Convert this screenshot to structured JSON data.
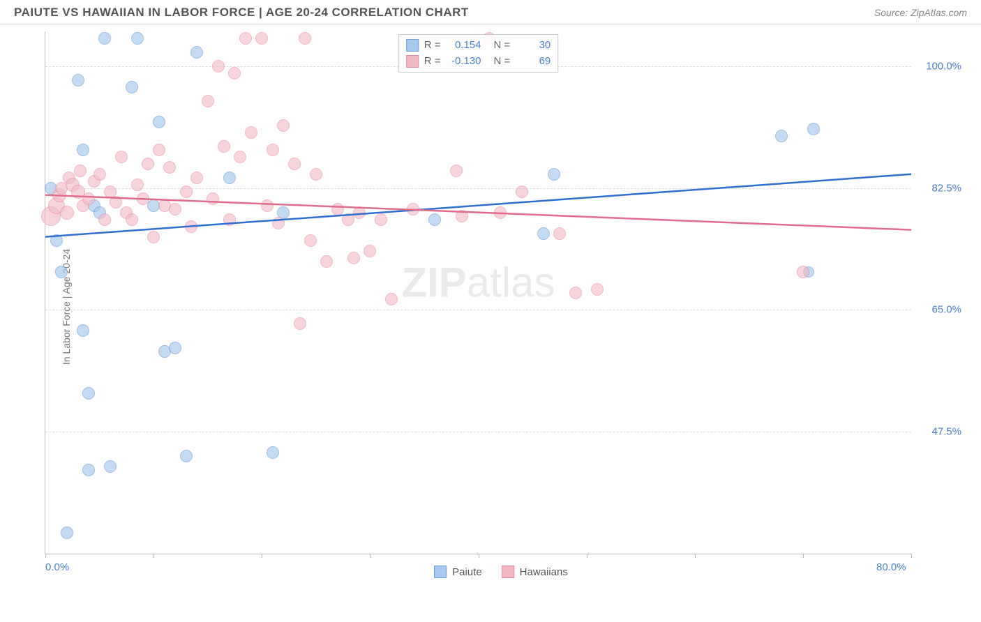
{
  "header": {
    "title": "PAIUTE VS HAWAIIAN IN LABOR FORCE | AGE 20-24 CORRELATION CHART",
    "source": "Source: ZipAtlas.com"
  },
  "chart": {
    "type": "scatter",
    "ylabel": "In Labor Force | Age 20-24",
    "watermark_bold": "ZIP",
    "watermark_rest": "atlas",
    "background_color": "#ffffff",
    "grid_color": "#dcdcdc",
    "axis_color": "#bbbbbb",
    "tick_label_color": "#4a7fd4",
    "xlim": [
      0,
      80
    ],
    "ylim": [
      30,
      105
    ],
    "xticks": [
      0,
      10,
      20,
      30,
      40,
      50,
      60,
      70,
      80
    ],
    "x_labels_shown": [
      {
        "v": 0,
        "t": "0.0%"
      },
      {
        "v": 80,
        "t": "80.0%"
      }
    ],
    "yticks": [
      {
        "v": 100.0,
        "t": "100.0%"
      },
      {
        "v": 82.5,
        "t": "82.5%"
      },
      {
        "v": 65.0,
        "t": "65.0%"
      },
      {
        "v": 47.5,
        "t": "47.5%"
      }
    ],
    "series": [
      {
        "name": "Paiute",
        "marker_color": "#a7c9ee",
        "marker_border": "#6b9ed6",
        "marker_opacity": 0.65,
        "marker_radius": 9,
        "line_color": "#2f6fd0",
        "line_width": 2.5,
        "R": "0.154",
        "N": "30",
        "trend": {
          "x1": 0,
          "y1": 75.5,
          "x2": 80,
          "y2": 84.5
        },
        "points": [
          {
            "x": 0.5,
            "y": 82.5,
            "r": 9
          },
          {
            "x": 1.0,
            "y": 75.0,
            "r": 9
          },
          {
            "x": 1.5,
            "y": 70.5,
            "r": 9
          },
          {
            "x": 2.0,
            "y": 33.0,
            "r": 9
          },
          {
            "x": 3.0,
            "y": 98.0,
            "r": 9
          },
          {
            "x": 3.5,
            "y": 62.0,
            "r": 9
          },
          {
            "x": 3.5,
            "y": 88.0,
            "r": 9
          },
          {
            "x": 4.0,
            "y": 42.0,
            "r": 9
          },
          {
            "x": 4.0,
            "y": 53.0,
            "r": 9
          },
          {
            "x": 4.5,
            "y": 80.0,
            "r": 9
          },
          {
            "x": 5.0,
            "y": 79.0,
            "r": 9
          },
          {
            "x": 5.5,
            "y": 104.0,
            "r": 9
          },
          {
            "x": 6.0,
            "y": 42.5,
            "r": 9
          },
          {
            "x": 8.0,
            "y": 97.0,
            "r": 9
          },
          {
            "x": 8.5,
            "y": 104.0,
            "r": 9
          },
          {
            "x": 10.0,
            "y": 80.0,
            "r": 9
          },
          {
            "x": 10.5,
            "y": 92.0,
            "r": 9
          },
          {
            "x": 11.0,
            "y": 59.0,
            "r": 9
          },
          {
            "x": 12.0,
            "y": 59.5,
            "r": 9
          },
          {
            "x": 13.0,
            "y": 44.0,
            "r": 9
          },
          {
            "x": 14.0,
            "y": 102.0,
            "r": 9
          },
          {
            "x": 17.0,
            "y": 84.0,
            "r": 9
          },
          {
            "x": 21.0,
            "y": 44.5,
            "r": 9
          },
          {
            "x": 22.0,
            "y": 79.0,
            "r": 9
          },
          {
            "x": 36.0,
            "y": 78.0,
            "r": 9
          },
          {
            "x": 46.0,
            "y": 76.0,
            "r": 9
          },
          {
            "x": 47.0,
            "y": 84.5,
            "r": 9
          },
          {
            "x": 68.0,
            "y": 90.0,
            "r": 9
          },
          {
            "x": 70.5,
            "y": 70.5,
            "r": 8
          },
          {
            "x": 71.0,
            "y": 91.0,
            "r": 9
          }
        ]
      },
      {
        "name": "Hawaiians",
        "marker_color": "#f2b9c5",
        "marker_border": "#e48aa0",
        "marker_opacity": 0.6,
        "marker_radius": 9,
        "line_color": "#e16b8c",
        "line_width": 2.5,
        "R": "-0.130",
        "N": "69",
        "trend": {
          "x1": 0,
          "y1": 81.5,
          "x2": 80,
          "y2": 76.5
        },
        "points": [
          {
            "x": 0.5,
            "y": 78.5,
            "r": 14
          },
          {
            "x": 1.0,
            "y": 80.0,
            "r": 12
          },
          {
            "x": 1.3,
            "y": 81.5,
            "r": 10
          },
          {
            "x": 1.5,
            "y": 82.5,
            "r": 9
          },
          {
            "x": 2.0,
            "y": 79.0,
            "r": 10
          },
          {
            "x": 2.2,
            "y": 84.0,
            "r": 9
          },
          {
            "x": 2.5,
            "y": 83.0,
            "r": 10
          },
          {
            "x": 3.0,
            "y": 82.0,
            "r": 10
          },
          {
            "x": 3.2,
            "y": 85.0,
            "r": 9
          },
          {
            "x": 3.5,
            "y": 80.0,
            "r": 9
          },
          {
            "x": 4.0,
            "y": 81.0,
            "r": 9
          },
          {
            "x": 4.5,
            "y": 83.5,
            "r": 9
          },
          {
            "x": 5.0,
            "y": 84.5,
            "r": 9
          },
          {
            "x": 5.5,
            "y": 78.0,
            "r": 9
          },
          {
            "x": 6.0,
            "y": 82.0,
            "r": 9
          },
          {
            "x": 6.5,
            "y": 80.5,
            "r": 9
          },
          {
            "x": 7.0,
            "y": 87.0,
            "r": 9
          },
          {
            "x": 7.5,
            "y": 79.0,
            "r": 9
          },
          {
            "x": 8.0,
            "y": 78.0,
            "r": 9
          },
          {
            "x": 8.5,
            "y": 83.0,
            "r": 9
          },
          {
            "x": 9.0,
            "y": 81.0,
            "r": 9
          },
          {
            "x": 9.5,
            "y": 86.0,
            "r": 9
          },
          {
            "x": 10.0,
            "y": 75.5,
            "r": 9
          },
          {
            "x": 10.5,
            "y": 88.0,
            "r": 9
          },
          {
            "x": 11.0,
            "y": 80.0,
            "r": 9
          },
          {
            "x": 11.5,
            "y": 85.5,
            "r": 9
          },
          {
            "x": 12.0,
            "y": 79.5,
            "r": 9
          },
          {
            "x": 13.0,
            "y": 82.0,
            "r": 9
          },
          {
            "x": 13.5,
            "y": 77.0,
            "r": 9
          },
          {
            "x": 14.0,
            "y": 84.0,
            "r": 9
          },
          {
            "x": 15.0,
            "y": 95.0,
            "r": 9
          },
          {
            "x": 15.5,
            "y": 81.0,
            "r": 9
          },
          {
            "x": 16.0,
            "y": 100.0,
            "r": 9
          },
          {
            "x": 16.5,
            "y": 88.5,
            "r": 9
          },
          {
            "x": 17.0,
            "y": 78.0,
            "r": 9
          },
          {
            "x": 17.5,
            "y": 99.0,
            "r": 9
          },
          {
            "x": 18.0,
            "y": 87.0,
            "r": 9
          },
          {
            "x": 18.5,
            "y": 104.0,
            "r": 9
          },
          {
            "x": 19.0,
            "y": 90.5,
            "r": 9
          },
          {
            "x": 20.0,
            "y": 104.0,
            "r": 9
          },
          {
            "x": 20.5,
            "y": 80.0,
            "r": 9
          },
          {
            "x": 21.0,
            "y": 88.0,
            "r": 9
          },
          {
            "x": 21.5,
            "y": 77.5,
            "r": 9
          },
          {
            "x": 22.0,
            "y": 91.5,
            "r": 9
          },
          {
            "x": 23.0,
            "y": 86.0,
            "r": 9
          },
          {
            "x": 23.5,
            "y": 63.0,
            "r": 9
          },
          {
            "x": 24.0,
            "y": 104.0,
            "r": 9
          },
          {
            "x": 24.5,
            "y": 75.0,
            "r": 9
          },
          {
            "x": 25.0,
            "y": 84.5,
            "r": 9
          },
          {
            "x": 26.0,
            "y": 72.0,
            "r": 9
          },
          {
            "x": 27.0,
            "y": 79.5,
            "r": 9
          },
          {
            "x": 28.0,
            "y": 78.0,
            "r": 9
          },
          {
            "x": 28.5,
            "y": 72.5,
            "r": 9
          },
          {
            "x": 29.0,
            "y": 79.0,
            "r": 9
          },
          {
            "x": 30.0,
            "y": 73.5,
            "r": 9
          },
          {
            "x": 31.0,
            "y": 78.0,
            "r": 9
          },
          {
            "x": 32.0,
            "y": 66.5,
            "r": 9
          },
          {
            "x": 34.0,
            "y": 79.5,
            "r": 9
          },
          {
            "x": 38.0,
            "y": 85.0,
            "r": 9
          },
          {
            "x": 38.5,
            "y": 78.5,
            "r": 9
          },
          {
            "x": 41.0,
            "y": 104.0,
            "r": 9
          },
          {
            "x": 42.0,
            "y": 79.0,
            "r": 9
          },
          {
            "x": 44.0,
            "y": 82.0,
            "r": 9
          },
          {
            "x": 47.5,
            "y": 76.0,
            "r": 9
          },
          {
            "x": 49.0,
            "y": 67.5,
            "r": 9
          },
          {
            "x": 51.0,
            "y": 68.0,
            "r": 9
          },
          {
            "x": 70.0,
            "y": 70.5,
            "r": 9
          }
        ]
      }
    ],
    "legend_top_labels": {
      "R": "R =",
      "N": "N ="
    },
    "legend_bottom": [
      "Paiute",
      "Hawaiians"
    ]
  }
}
